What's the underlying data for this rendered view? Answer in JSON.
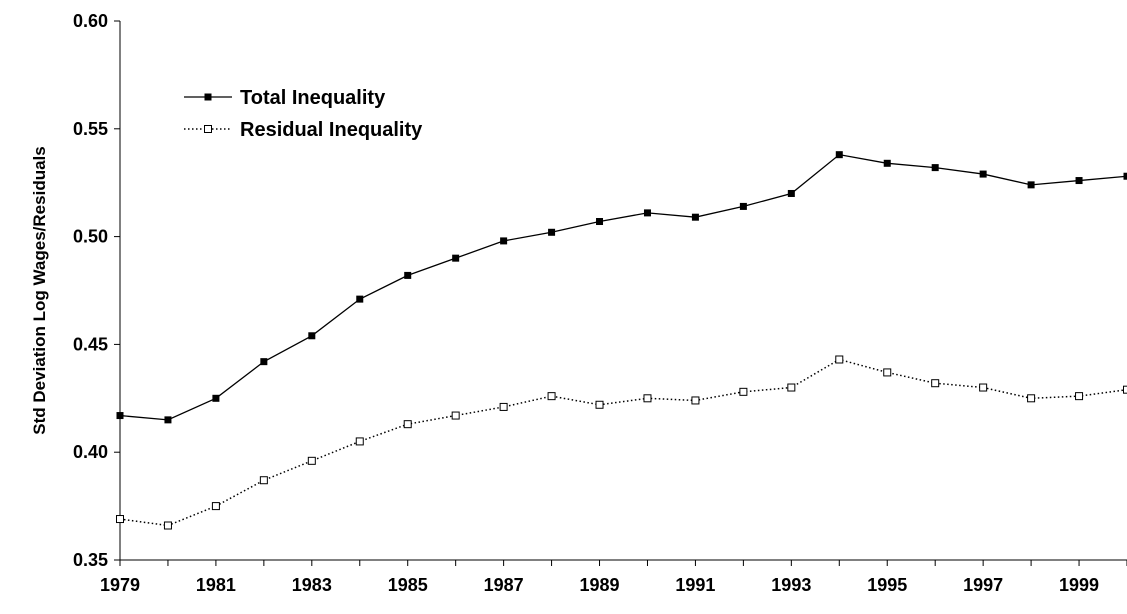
{
  "chart_data": {
    "type": "line",
    "title": "",
    "xlabel": "",
    "ylabel": "Std Deviation Log Wages/Residuals",
    "x": [
      1979,
      1980,
      1981,
      1982,
      1983,
      1984,
      1985,
      1986,
      1987,
      1988,
      1989,
      1990,
      1991,
      1992,
      1993,
      1994,
      1995,
      1996,
      1997,
      1998,
      1999,
      2000
    ],
    "x_tick_labels": [
      "1979",
      "1981",
      "1983",
      "1985",
      "1987",
      "1989",
      "1991",
      "1993",
      "1995",
      "1997",
      "1999"
    ],
    "xlim": [
      1979,
      2000
    ],
    "ylim": [
      0.35,
      0.6
    ],
    "y_tick_labels": [
      "0.35",
      "0.40",
      "0.45",
      "0.50",
      "0.55",
      "0.60"
    ],
    "grid": false,
    "legend_position": "top-left",
    "series": [
      {
        "name": "Total Inequality",
        "line_style": "solid",
        "marker": "filled-square",
        "color": "#000000",
        "values": [
          0.417,
          0.415,
          0.425,
          0.442,
          0.454,
          0.471,
          0.482,
          0.49,
          0.498,
          0.502,
          0.507,
          0.511,
          0.509,
          0.514,
          0.52,
          0.538,
          0.534,
          0.532,
          0.529,
          0.524,
          0.526,
          0.528
        ]
      },
      {
        "name": "Residual Inequality",
        "line_style": "dotted",
        "marker": "open-square",
        "color": "#000000",
        "values": [
          0.369,
          0.366,
          0.375,
          0.387,
          0.396,
          0.405,
          0.413,
          0.417,
          0.421,
          0.426,
          0.422,
          0.425,
          0.424,
          0.428,
          0.43,
          0.443,
          0.437,
          0.432,
          0.43,
          0.425,
          0.426,
          0.429
        ]
      }
    ]
  }
}
